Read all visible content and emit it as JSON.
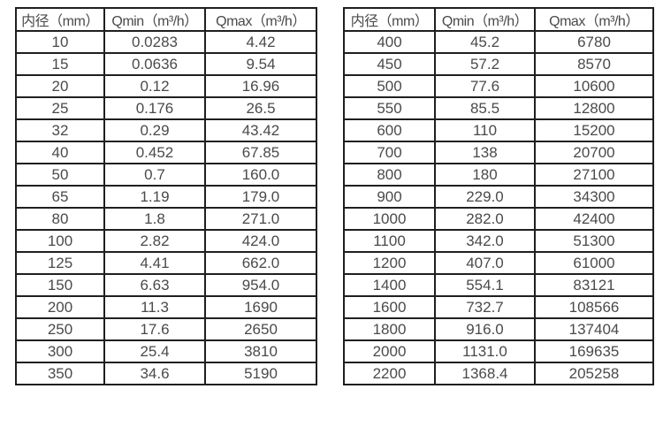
{
  "colors": {
    "background": "#ffffff",
    "border": "#1f1f1f",
    "text": "#4a4a4a"
  },
  "tables": [
    {
      "name": "diameter-flow-table-small",
      "headers": [
        "内径（mm）",
        "Qmin（m³/h）",
        "Qmax（m³/h）"
      ],
      "rows": [
        [
          "10",
          "0.0283",
          "4.42"
        ],
        [
          "15",
          "0.0636",
          "9.54"
        ],
        [
          "20",
          "0.12",
          "16.96"
        ],
        [
          "25",
          "0.176",
          "26.5"
        ],
        [
          "32",
          "0.29",
          "43.42"
        ],
        [
          "40",
          "0.452",
          "67.85"
        ],
        [
          "50",
          "0.7",
          "160.0"
        ],
        [
          "65",
          "1.19",
          "179.0"
        ],
        [
          "80",
          "1.8",
          "271.0"
        ],
        [
          "100",
          "2.82",
          "424.0"
        ],
        [
          "125",
          "4.41",
          "662.0"
        ],
        [
          "150",
          "6.63",
          "954.0"
        ],
        [
          "200",
          "11.3",
          "1690"
        ],
        [
          "250",
          "17.6",
          "2650"
        ],
        [
          "300",
          "25.4",
          "3810"
        ],
        [
          "350",
          "34.6",
          "5190"
        ]
      ]
    },
    {
      "name": "diameter-flow-table-large",
      "headers": [
        "内径（mm）",
        "Qmin（m³/h）",
        "Qmax（m³/h）"
      ],
      "rows": [
        [
          "400",
          "45.2",
          "6780"
        ],
        [
          "450",
          "57.2",
          "8570"
        ],
        [
          "500",
          "77.6",
          "10600"
        ],
        [
          "550",
          "85.5",
          "12800"
        ],
        [
          "600",
          "110",
          "15200"
        ],
        [
          "700",
          "138",
          "20700"
        ],
        [
          "800",
          "180",
          "27100"
        ],
        [
          "900",
          "229.0",
          "34300"
        ],
        [
          "1000",
          "282.0",
          "42400"
        ],
        [
          "1100",
          "342.0",
          "51300"
        ],
        [
          "1200",
          "407.0",
          "61000"
        ],
        [
          "1400",
          "554.1",
          "83121"
        ],
        [
          "1600",
          "732.7",
          "108566"
        ],
        [
          "1800",
          "916.0",
          "137404"
        ],
        [
          "2000",
          "1131.0",
          "169635"
        ],
        [
          "2200",
          "1368.4",
          "205258"
        ]
      ]
    }
  ]
}
